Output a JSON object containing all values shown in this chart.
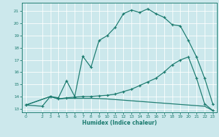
{
  "xlabel": "Humidex (Indice chaleur)",
  "bg_color": "#cce8ec",
  "line_color": "#1a7a6e",
  "grid_color": "#ffffff",
  "xlim": [
    -0.5,
    23.5
  ],
  "ylim": [
    12.7,
    21.7
  ],
  "xticks": [
    0,
    2,
    3,
    4,
    5,
    6,
    7,
    8,
    9,
    10,
    11,
    12,
    13,
    14,
    15,
    16,
    17,
    18,
    19,
    20,
    21,
    22,
    23
  ],
  "yticks": [
    13,
    14,
    15,
    16,
    17,
    18,
    19,
    20,
    21
  ],
  "line1_x": [
    0,
    2,
    3,
    4,
    5,
    6,
    7,
    8,
    9,
    10,
    11,
    12,
    13,
    14,
    15,
    16,
    17,
    18,
    19,
    20,
    21,
    22,
    23
  ],
  "line1_y": [
    13.3,
    13.2,
    14.0,
    13.9,
    15.3,
    14.0,
    17.3,
    16.4,
    18.6,
    19.0,
    19.7,
    20.8,
    21.1,
    20.9,
    21.2,
    20.8,
    20.5,
    19.9,
    19.8,
    18.6,
    17.25,
    15.5,
    13.4
  ],
  "line2_x": [
    0,
    3,
    4,
    5,
    6,
    7,
    8,
    9,
    10,
    11,
    12,
    13,
    14,
    15,
    16,
    17,
    18,
    19,
    20,
    21,
    22,
    23
  ],
  "line2_y": [
    13.3,
    14.0,
    13.8,
    13.9,
    13.95,
    14.0,
    14.0,
    14.05,
    14.1,
    14.2,
    14.4,
    14.6,
    14.9,
    15.2,
    15.5,
    16.0,
    16.6,
    17.0,
    17.25,
    15.5,
    13.4,
    12.85
  ],
  "line3_x": [
    0,
    3,
    4,
    5,
    6,
    7,
    8,
    9,
    10,
    11,
    12,
    13,
    14,
    15,
    16,
    17,
    18,
    19,
    20,
    21,
    22,
    23
  ],
  "line3_y": [
    13.3,
    14.0,
    13.8,
    13.85,
    13.85,
    13.85,
    13.85,
    13.83,
    13.8,
    13.75,
    13.7,
    13.65,
    13.6,
    13.55,
    13.5,
    13.45,
    13.4,
    13.35,
    13.3,
    13.25,
    13.2,
    12.85
  ]
}
